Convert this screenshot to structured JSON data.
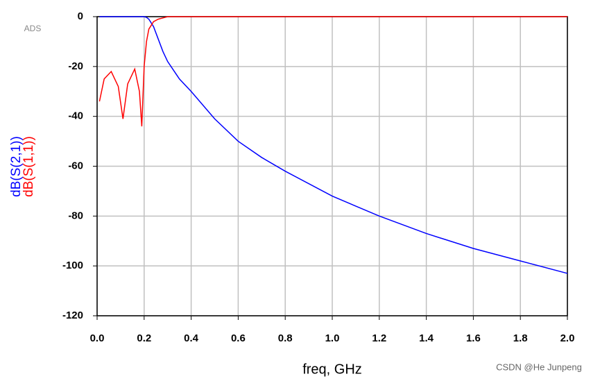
{
  "chart_data": {
    "type": "line",
    "brand": "ADS",
    "x_label": "freq, GHz",
    "watermark": "CSDN @He Junpeng",
    "x": [
      0.01,
      0.03,
      0.06,
      0.09,
      0.11,
      0.13,
      0.16,
      0.18,
      0.19,
      0.2,
      0.21,
      0.22,
      0.24,
      0.26,
      0.28,
      0.3,
      0.35,
      0.4,
      0.5,
      0.6,
      0.7,
      0.8,
      1.0,
      1.2,
      1.4,
      1.6,
      1.8,
      2.0
    ],
    "series": [
      {
        "name": "dB(S(2,1))",
        "color": "#0000ff",
        "values": [
          0,
          0,
          0,
          0,
          0,
          0,
          0,
          0,
          0,
          0,
          -0.3,
          -1,
          -4,
          -9,
          -14,
          -18,
          -25,
          -30,
          -41,
          -50,
          -56.5,
          -62,
          -72,
          -80,
          -87,
          -93,
          -98,
          -103
        ]
      },
      {
        "name": "dB(S(1,1))",
        "color": "#ff0000",
        "values": [
          -34,
          -25,
          -22,
          -28,
          -41,
          -27,
          -21,
          -30,
          -44,
          -20,
          -10,
          -5,
          -2,
          -1,
          -0.5,
          0,
          0,
          0,
          0,
          0,
          0,
          0,
          0,
          0,
          0,
          0,
          0,
          0
        ]
      }
    ],
    "xlim": [
      0,
      2
    ],
    "xticks": [
      {
        "value": 0,
        "label": "0.0"
      },
      0.2,
      0.4,
      0.6,
      0.8,
      {
        "value": 1,
        "label": "1.0"
      },
      1.2,
      1.4,
      1.6,
      1.8,
      {
        "value": 2,
        "label": "2.0"
      }
    ],
    "ylim": [
      -120,
      0
    ],
    "yticks": [
      0,
      -20,
      -40,
      -60,
      -80,
      -100,
      -120
    ],
    "grid": true
  }
}
